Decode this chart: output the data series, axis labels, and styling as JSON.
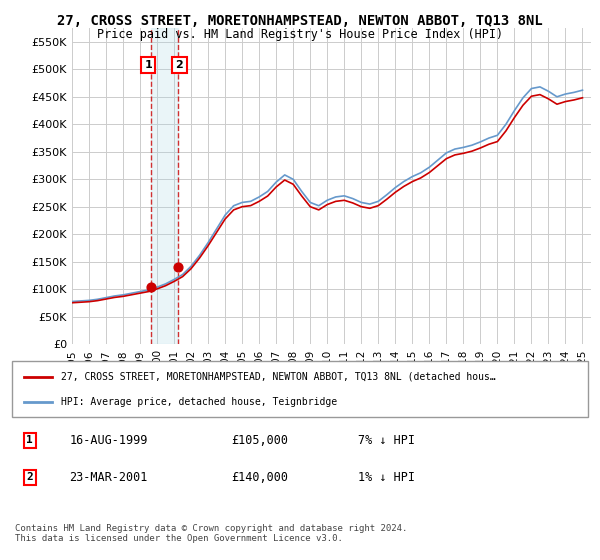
{
  "title": "27, CROSS STREET, MORETONHAMPSTEAD, NEWTON ABBOT, TQ13 8NL",
  "subtitle": "Price paid vs. HM Land Registry's House Price Index (HPI)",
  "ylabel_ticks": [
    "£0",
    "£50K",
    "£100K",
    "£150K",
    "£200K",
    "£250K",
    "£300K",
    "£350K",
    "£400K",
    "£450K",
    "£500K",
    "£550K"
  ],
  "ytick_vals": [
    0,
    50000,
    100000,
    150000,
    200000,
    250000,
    300000,
    350000,
    400000,
    450000,
    500000,
    550000
  ],
  "ylim": [
    0,
    575000
  ],
  "xlim_start": 1995.0,
  "xlim_end": 2025.5,
  "legend_line1": "27, CROSS STREET, MORETONHAMPSTEAD, NEWTON ABBOT, TQ13 8NL (detached hous…",
  "legend_line2": "HPI: Average price, detached house, Teignbridge",
  "sale1_label": "1",
  "sale1_date": "16-AUG-1999",
  "sale1_price": "£105,000",
  "sale1_note": "7% ↓ HPI",
  "sale2_label": "2",
  "sale2_date": "23-MAR-2001",
  "sale2_price": "£140,000",
  "sale2_note": "1% ↓ HPI",
  "footer": "Contains HM Land Registry data © Crown copyright and database right 2024.\nThis data is licensed under the Open Government Licence v3.0.",
  "line_color_red": "#cc0000",
  "line_color_blue": "#6699cc",
  "marker_color": "#cc0000",
  "sale1_x": 1999.62,
  "sale1_y": 105000,
  "sale2_x": 2001.23,
  "sale2_y": 140000,
  "background_color": "#ffffff",
  "grid_color": "#cccccc"
}
